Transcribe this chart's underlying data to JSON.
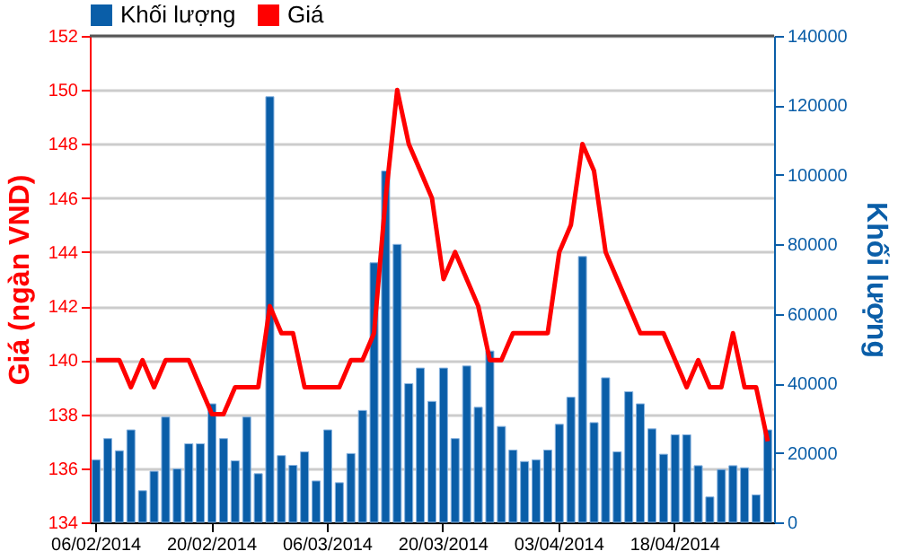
{
  "chart_data": {
    "type": "bar",
    "categories": [
      "06/02/2014",
      null,
      null,
      null,
      null,
      null,
      null,
      null,
      null,
      null,
      "20/02/2014",
      null,
      null,
      null,
      null,
      null,
      null,
      null,
      null,
      null,
      "06/03/2014",
      null,
      null,
      null,
      null,
      null,
      null,
      null,
      null,
      null,
      "20/03/2014",
      null,
      null,
      null,
      null,
      null,
      null,
      null,
      null,
      null,
      "03/04/2014",
      null,
      null,
      null,
      null,
      null,
      null,
      null,
      null,
      null,
      "18/04/2014",
      null,
      null,
      null,
      null,
      null,
      null,
      null,
      null
    ],
    "series": [
      {
        "name": "Khối lượng",
        "axis": "y2",
        "color": "#0a5ea8",
        "values": [
          18000,
          24100,
          20600,
          26600,
          9100,
          14700,
          30300,
          15400,
          22600,
          22600,
          34100,
          24100,
          17700,
          30300,
          14000,
          122500,
          19200,
          16400,
          20300,
          11900,
          26600,
          11400,
          19800,
          32200,
          74700,
          101100,
          80000,
          39900,
          44400,
          34800,
          44400,
          24100,
          45000,
          33100,
          49300,
          27600,
          20800,
          17500,
          18000,
          20800,
          28200,
          36000,
          76500,
          28700,
          41600,
          20300,
          37600,
          34100,
          26900,
          19600,
          25200,
          25200,
          16300,
          7300,
          15200,
          16300,
          15700,
          7900,
          26600
        ]
      },
      {
        "name": "Giá",
        "type": "line",
        "color": "#ff0000",
        "values": [
          140,
          140,
          140,
          139,
          140,
          139,
          140,
          140,
          140,
          139,
          138,
          138,
          139,
          139,
          139,
          142,
          141,
          141,
          139,
          139,
          139,
          139,
          140,
          140,
          141,
          146,
          150,
          148,
          147,
          146,
          143,
          144,
          143,
          142,
          140,
          140,
          141,
          141,
          141,
          141,
          144,
          145,
          148,
          147,
          144,
          143,
          142,
          141,
          141,
          141,
          140,
          139,
          140,
          139,
          139,
          141,
          139,
          139,
          137
        ]
      }
    ],
    "ylabel": "Giá (ngàn VND)",
    "y2label": "Khối lượng",
    "ylim": [
      134,
      152
    ],
    "yticks": [
      134,
      136,
      138,
      140,
      142,
      144,
      146,
      148,
      150,
      152
    ],
    "y2lim": [
      0,
      140000
    ],
    "y2ticks": [
      0,
      20000,
      40000,
      60000,
      80000,
      100000,
      120000,
      140000
    ],
    "grid": "y",
    "legend": "top left",
    "line_style": "solid"
  }
}
